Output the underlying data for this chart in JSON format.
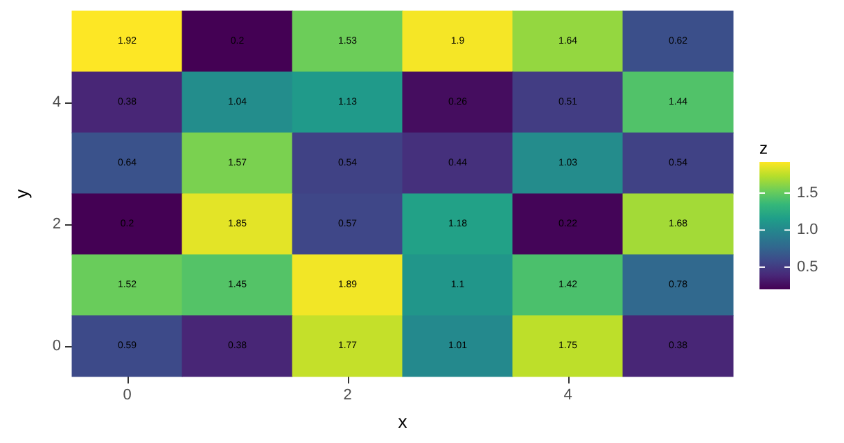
{
  "chart_data": {
    "type": "heatmap",
    "xlabel": "x",
    "ylabel": "y",
    "clabel": "z",
    "categories": [
      "0",
      null,
      "2",
      null,
      "4",
      null
    ],
    "y_categories": [
      null,
      "4",
      null,
      "2",
      null,
      "0"
    ],
    "cells": [
      [
        1.92,
        0.2,
        1.53,
        1.9,
        1.64,
        0.62
      ],
      [
        0.38,
        1.04,
        1.13,
        0.26,
        0.51,
        1.44
      ],
      [
        0.64,
        1.57,
        0.54,
        0.44,
        1.03,
        0.54
      ],
      [
        0.2,
        1.85,
        0.57,
        1.18,
        0.22,
        1.68
      ],
      [
        1.52,
        1.45,
        1.89,
        1.1,
        1.42,
        0.78
      ],
      [
        0.59,
        0.38,
        1.77,
        1.01,
        1.75,
        0.38
      ]
    ],
    "data_labels": true,
    "clim": [
      0.2,
      1.92
    ],
    "cticks": [
      {
        "value": 0.5,
        "label": "0.5"
      },
      {
        "value": 1,
        "label": "1.0"
      },
      {
        "value": 1.5,
        "label": "1.5"
      }
    ]
  }
}
